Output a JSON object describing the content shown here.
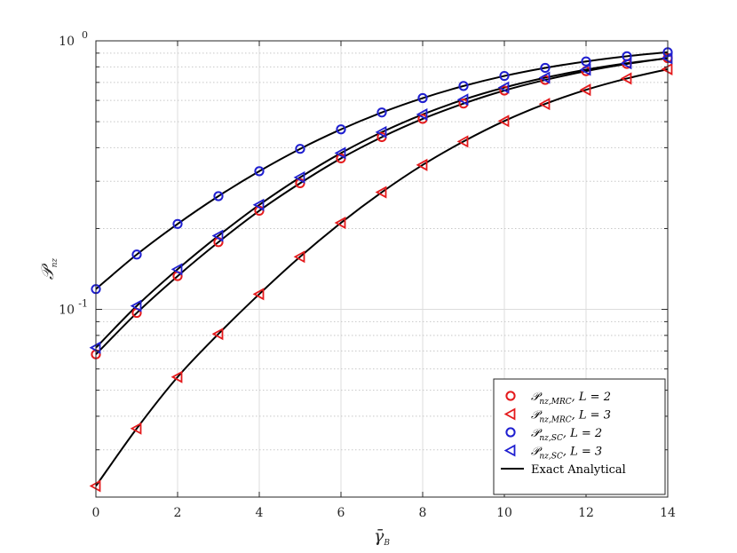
{
  "chart_data": {
    "type": "line",
    "xlabel": "γ̄_B",
    "ylabel": "P_nz",
    "xlim": [
      0,
      14
    ],
    "ylim": [
      0.02,
      1
    ],
    "yscale": "log",
    "grid": true,
    "legend_position": "bottom-right",
    "x_ticks": [
      "0",
      "2",
      "4",
      "6",
      "8",
      "10",
      "12",
      "14"
    ],
    "y_ticks": [
      {
        "value": 0.1,
        "base": "10",
        "exp": "-1"
      },
      {
        "value": 1,
        "base": "10",
        "exp": "0"
      }
    ],
    "x": [
      0,
      1,
      2,
      3,
      4,
      5,
      6,
      7,
      8,
      9,
      10,
      11,
      12,
      13,
      14
    ],
    "series": [
      {
        "name": "P_nz,MRC, L = 2",
        "legend_main": "𝒫",
        "legend_sub": "nz,MRC",
        "legend_rest": ", L = 2",
        "marker": "circle",
        "color": "#e41a1c",
        "values": [
          0.068,
          0.097,
          0.133,
          0.178,
          0.233,
          0.295,
          0.365,
          0.438,
          0.512,
          0.584,
          0.653,
          0.715,
          0.771,
          0.82,
          0.862
        ]
      },
      {
        "name": "P_nz,MRC, L = 3",
        "legend_main": "𝒫",
        "legend_sub": "nz,MRC",
        "legend_rest": ", L = 3",
        "marker": "triangle-left",
        "color": "#e41a1c",
        "values": [
          0.022,
          0.036,
          0.056,
          0.081,
          0.114,
          0.157,
          0.21,
          0.273,
          0.345,
          0.422,
          0.503,
          0.582,
          0.657,
          0.724,
          0.784
        ]
      },
      {
        "name": "P_nz,SC, L = 2",
        "legend_main": "𝒫",
        "legend_sub": "nz,SC",
        "legend_rest": ", L = 2",
        "marker": "circle",
        "color": "#1f1fd0",
        "values": [
          0.119,
          0.16,
          0.208,
          0.264,
          0.327,
          0.396,
          0.468,
          0.541,
          0.612,
          0.679,
          0.74,
          0.793,
          0.838,
          0.876,
          0.907
        ]
      },
      {
        "name": "P_nz,SC, L = 3",
        "legend_main": "𝒫",
        "legend_sub": "nz,SC",
        "legend_rest": ", L = 3",
        "marker": "triangle-left",
        "color": "#1f1fd0",
        "values": [
          0.072,
          0.103,
          0.141,
          0.188,
          0.245,
          0.31,
          0.382,
          0.457,
          0.532,
          0.604,
          0.67,
          0.729,
          0.781,
          0.825,
          0.862
        ]
      }
    ],
    "analytical_legend": "Exact Analytical",
    "analytical_color": "#000000"
  }
}
